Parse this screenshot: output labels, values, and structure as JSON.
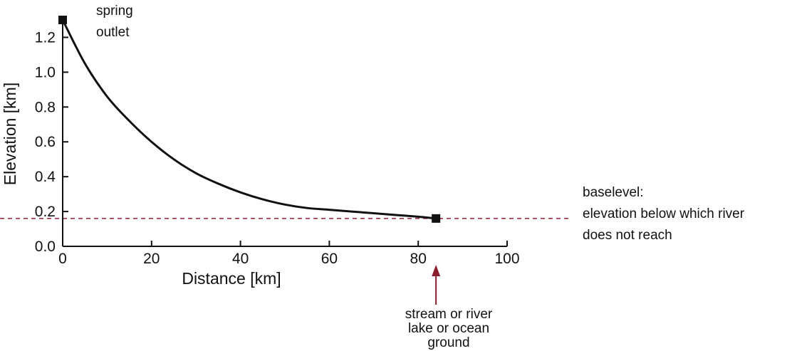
{
  "chart_data": {
    "type": "line",
    "xlabel": "Distance [km]",
    "ylabel": "Elevation [km]",
    "xlim": [
      0,
      100
    ],
    "ylim": [
      0,
      1.3
    ],
    "x_ticks": [
      "0",
      "20",
      "40",
      "60",
      "80",
      "100"
    ],
    "y_ticks": [
      "0.0",
      "0.2",
      "0.4",
      "0.6",
      "0.8",
      "1.0",
      "1.2"
    ],
    "grid": false,
    "series": [
      {
        "color": "#111111",
        "x": [
          0,
          5,
          10,
          15,
          20,
          25,
          30,
          35,
          40,
          45,
          50,
          55,
          60,
          65,
          70,
          75,
          80,
          84
        ],
        "y": [
          1.3,
          1.05,
          0.86,
          0.72,
          0.6,
          0.5,
          0.42,
          0.36,
          0.31,
          0.27,
          0.24,
          0.22,
          0.21,
          0.2,
          0.19,
          0.18,
          0.17,
          0.16
        ]
      }
    ],
    "markers": [
      {
        "x": 0,
        "y": 1.3,
        "label_lines": [
          "spring",
          "outlet"
        ]
      },
      {
        "x": 84,
        "y": 0.16
      }
    ],
    "baselevel": {
      "y": 0.16,
      "color": "#a03040",
      "style": "dashed",
      "label_lines": [
        "baselevel:",
        "elevation below which river",
        "does not reach"
      ]
    },
    "arrow_annotation": {
      "x": 84,
      "color": "#8b1e2e",
      "label_lines": [
        "stream or river",
        "lake or ocean",
        "ground"
      ]
    }
  }
}
